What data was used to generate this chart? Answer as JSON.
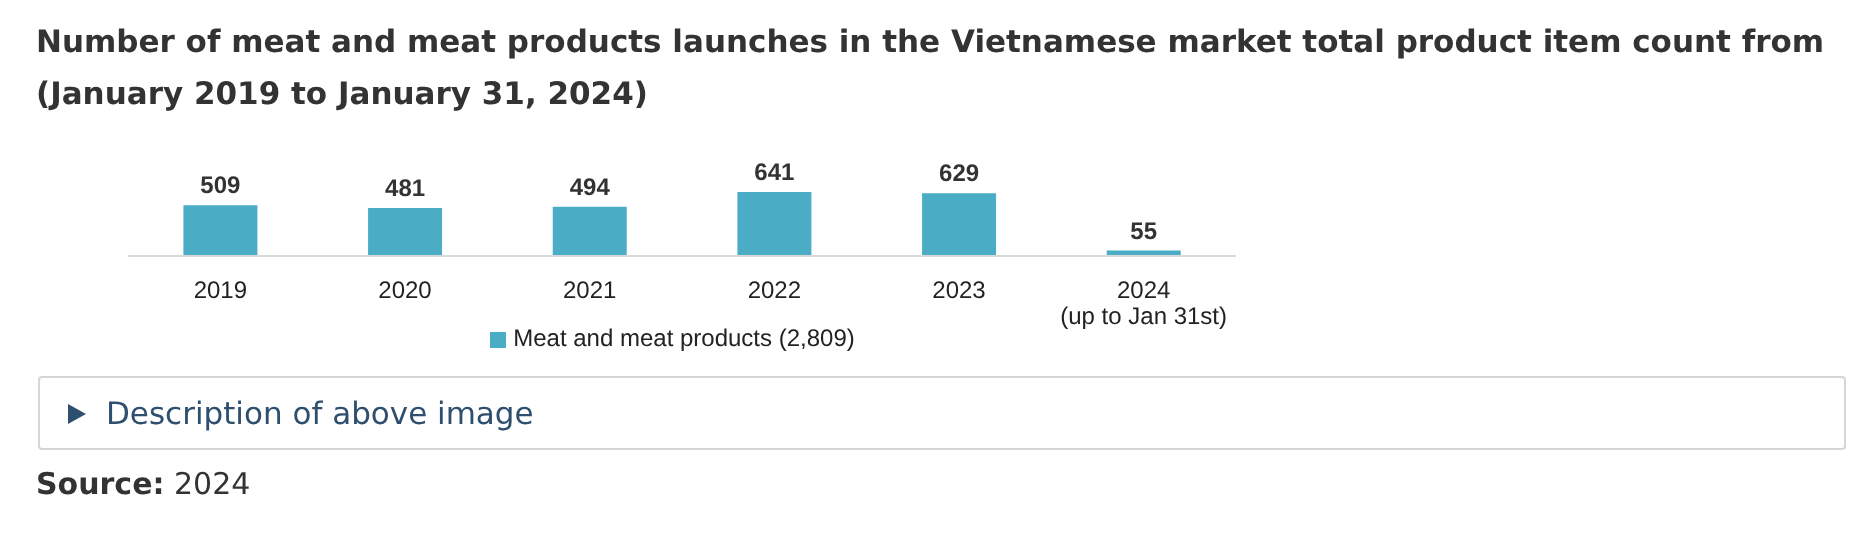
{
  "chart_data": {
    "type": "bar",
    "title": "Number of meat and meat products launches in the Vietnamese market total product item count from (January 2019 to January 31, 2024)",
    "categories": [
      "2019",
      "2020",
      "2021",
      "2022",
      "2023",
      "2024\n(up to Jan 31st)"
    ],
    "series": [
      {
        "name": "Meat and meat products (2,809)",
        "color": "#4bacc6",
        "values": [
          509,
          481,
          494,
          641,
          629,
          55
        ]
      }
    ],
    "data_labels": true,
    "legend": "bottom",
    "grid": false,
    "annotations": [
      "Description of above image",
      "Source: 2024"
    ]
  }
}
